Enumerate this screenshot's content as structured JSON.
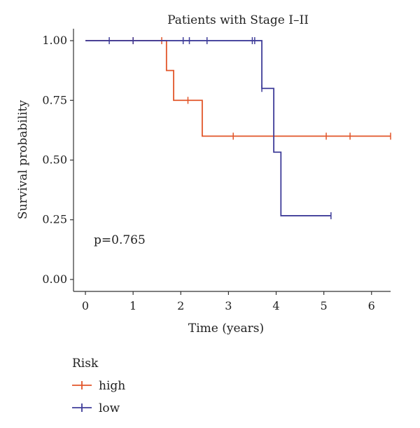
{
  "chart_data": {
    "type": "line",
    "title": "Patients with Stage I–II",
    "xlabel": "Time (years)",
    "ylabel": "Survival probability",
    "xlim": [
      -0.25,
      6.4
    ],
    "ylim": [
      -0.05,
      1.05
    ],
    "x_ticks": [
      0,
      1,
      2,
      3,
      4,
      5,
      6
    ],
    "x_tick_labels": [
      "0",
      "1",
      "2",
      "3",
      "4",
      "5",
      "6"
    ],
    "y_ticks": [
      0,
      0.25,
      0.5,
      0.75,
      1
    ],
    "y_tick_labels": [
      "0.00",
      "0.25",
      "0.50",
      "0.75",
      "1.00"
    ],
    "grid": false,
    "annotation": "p=0.765",
    "legend": {
      "title": "Risk",
      "placement": "bottom-left",
      "entries": [
        "high",
        "low"
      ]
    },
    "series": [
      {
        "name": "high",
        "color": "#e2562a",
        "steps": [
          [
            0,
            1
          ],
          [
            1.7,
            0.875
          ],
          [
            1.85,
            0.75
          ],
          [
            2.45,
            0.6
          ]
        ],
        "end_x": 6.4,
        "censors": [
          [
            1.0,
            1
          ],
          [
            1.6,
            1
          ],
          [
            2.15,
            0.75
          ],
          [
            3.1,
            0.6
          ],
          [
            5.05,
            0.6
          ],
          [
            5.55,
            0.6
          ],
          [
            6.4,
            0.6
          ]
        ]
      },
      {
        "name": "low",
        "color": "#3f3d99",
        "steps": [
          [
            0,
            1
          ],
          [
            3.7,
            0.8
          ],
          [
            3.95,
            0.533
          ],
          [
            4.1,
            0.267
          ]
        ],
        "end_x": 5.15,
        "censors": [
          [
            0.5,
            1
          ],
          [
            1.0,
            1
          ],
          [
            2.05,
            1
          ],
          [
            2.18,
            1
          ],
          [
            2.55,
            1
          ],
          [
            3.5,
            1
          ],
          [
            3.55,
            1
          ],
          [
            3.7,
            0.8
          ],
          [
            5.15,
            0.267
          ]
        ]
      }
    ]
  }
}
